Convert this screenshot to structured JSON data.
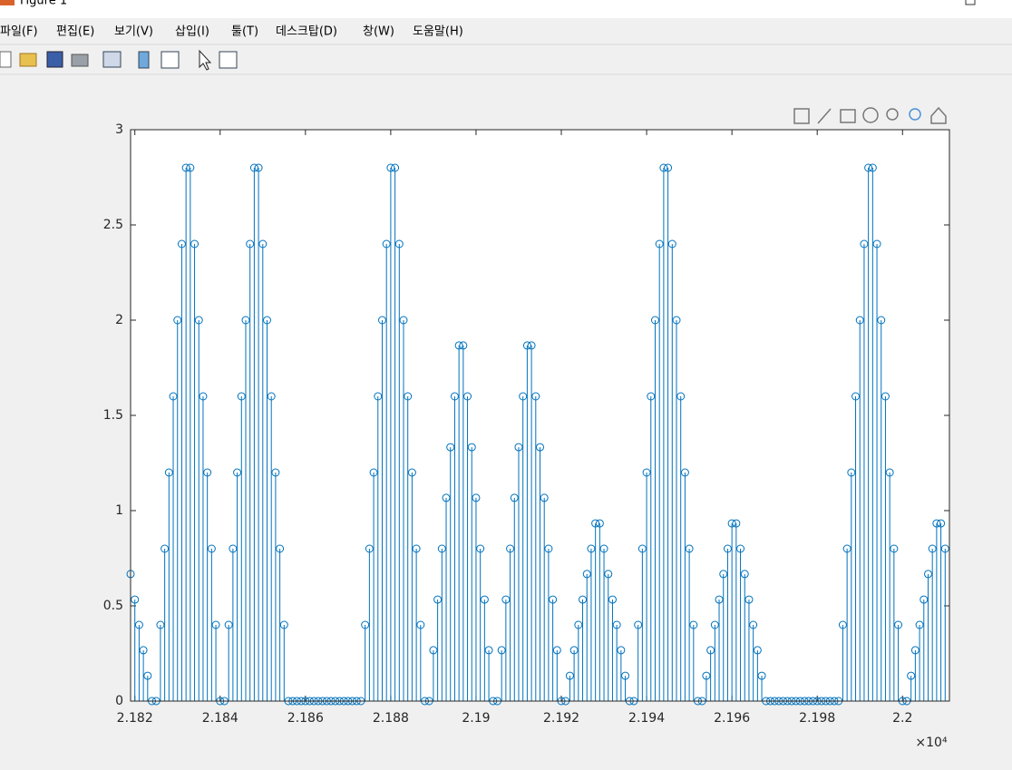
{
  "window": {
    "title": "Figure 1"
  },
  "menu": [
    "파일(F)",
    "편집(E)",
    "보기(V)",
    "삽입(I)",
    "툴(T)",
    "데스크탑(D)",
    "창(W)",
    "도움말(H)"
  ],
  "chart_data": {
    "type": "stem",
    "color": "#0072bd",
    "x": [
      21819,
      21820,
      21821,
      21822,
      21823,
      21824,
      21825,
      21826,
      21827,
      21828,
      21829,
      21830,
      21831,
      21832,
      21833,
      21834,
      21835,
      21836,
      21837,
      21838,
      21839,
      21840,
      21841,
      21842,
      21843,
      21844,
      21845,
      21846,
      21847,
      21848,
      21849,
      21850,
      21851,
      21852,
      21853,
      21854,
      21855,
      21856,
      21857,
      21858,
      21859,
      21860,
      21861,
      21862,
      21863,
      21864,
      21865,
      21866,
      21867,
      21868,
      21869,
      21870,
      21871,
      21872,
      21873,
      21874,
      21875,
      21876,
      21877,
      21878,
      21879,
      21880,
      21881,
      21882,
      21883,
      21884,
      21885,
      21886,
      21887,
      21888,
      21889,
      21890,
      21891,
      21892,
      21893,
      21894,
      21895,
      21896,
      21897,
      21898,
      21899,
      21900,
      21901,
      21902,
      21903,
      21904,
      21905,
      21906,
      21907,
      21908,
      21909,
      21910,
      21911,
      21912,
      21913,
      21914,
      21915,
      21916,
      21917,
      21918,
      21919,
      21920,
      21921,
      21922,
      21923,
      21924,
      21925,
      21926,
      21927,
      21928,
      21929,
      21930,
      21931,
      21932,
      21933,
      21934,
      21935,
      21936,
      21937,
      21938,
      21939,
      21940,
      21941,
      21942,
      21943,
      21944,
      21945,
      21946,
      21947,
      21948,
      21949,
      21950,
      21951,
      21952,
      21953,
      21954,
      21955,
      21956,
      21957,
      21958,
      21959,
      21960,
      21961,
      21962,
      21963,
      21964,
      21965,
      21966,
      21967,
      21968,
      21969,
      21970,
      21971,
      21972,
      21973,
      21974,
      21975,
      21976,
      21977,
      21978,
      21979,
      21980,
      21981,
      21982,
      21983,
      21984,
      21985,
      21986,
      21987,
      21988,
      21989,
      21990,
      21991,
      21992,
      21993,
      21994,
      21995,
      21996,
      21997,
      21998,
      21999,
      22000,
      22001,
      22002,
      22003,
      22004,
      22005,
      22006,
      22007,
      22008,
      22009,
      22010
    ],
    "values": [
      0.667,
      0.533,
      0.4,
      0.267,
      0.133,
      0,
      0,
      0.4,
      0.8,
      1.2,
      1.6,
      2,
      2.4,
      2.8,
      2.8,
      2.4,
      2,
      1.6,
      1.2,
      0.8,
      0.4,
      0,
      0,
      0.4,
      0.8,
      1.2,
      1.6,
      2,
      2.4,
      2.8,
      2.8,
      2.4,
      2,
      1.6,
      1.2,
      0.8,
      0.4,
      0,
      0,
      0,
      0,
      0,
      0,
      0,
      0,
      0,
      0,
      0,
      0,
      0,
      0,
      0,
      0,
      0,
      0,
      0.4,
      0.8,
      1.2,
      1.6,
      2,
      2.4,
      2.8,
      2.8,
      2.4,
      2,
      1.6,
      1.2,
      0.8,
      0.4,
      0,
      0,
      0.267,
      0.533,
      0.8,
      1.067,
      1.333,
      1.6,
      1.867,
      1.867,
      1.6,
      1.333,
      1.067,
      0.8,
      0.533,
      0.267,
      0,
      0,
      0.267,
      0.533,
      0.8,
      1.067,
      1.333,
      1.6,
      1.867,
      1.867,
      1.6,
      1.333,
      1.067,
      0.8,
      0.533,
      0.267,
      0,
      0,
      0.133,
      0.267,
      0.4,
      0.533,
      0.667,
      0.8,
      0.933,
      0.933,
      0.8,
      0.667,
      0.533,
      0.4,
      0.267,
      0.133,
      0,
      0,
      0.4,
      0.8,
      1.2,
      1.6,
      2,
      2.4,
      2.8,
      2.8,
      2.4,
      2,
      1.6,
      1.2,
      0.8,
      0.4,
      0,
      0,
      0.133,
      0.267,
      0.4,
      0.533,
      0.667,
      0.8,
      0.933,
      0.933,
      0.8,
      0.667,
      0.533,
      0.4,
      0.267,
      0.133,
      0,
      0,
      0,
      0,
      0,
      0,
      0,
      0,
      0,
      0,
      0,
      0,
      0,
      0,
      0,
      0,
      0,
      0,
      0.4,
      0.8,
      1.2,
      1.6,
      2,
      2.4,
      2.8,
      2.8,
      2.4,
      2,
      1.6,
      1.2,
      0.8,
      0.4,
      0,
      0,
      0.133,
      0.267,
      0.4,
      0.533,
      0.667,
      0.8,
      0.933,
      0.933,
      0.8
    ],
    "xlim": [
      21819,
      22011
    ],
    "ylim": [
      0,
      3
    ],
    "xticks": [
      {
        "value": 21820,
        "label": "2.182"
      },
      {
        "value": 21840,
        "label": "2.184"
      },
      {
        "value": 21860,
        "label": "2.186"
      },
      {
        "value": 21880,
        "label": "2.188"
      },
      {
        "value": 21900,
        "label": "2.19"
      },
      {
        "value": 21920,
        "label": "2.192"
      },
      {
        "value": 21940,
        "label": "2.194"
      },
      {
        "value": 21960,
        "label": "2.196"
      },
      {
        "value": 21980,
        "label": "2.198"
      },
      {
        "value": 22000,
        "label": "2.2"
      }
    ],
    "yticks": [
      0,
      0.5,
      1,
      1.5,
      2,
      2.5,
      3
    ],
    "x_multiplier": "×10⁴"
  }
}
